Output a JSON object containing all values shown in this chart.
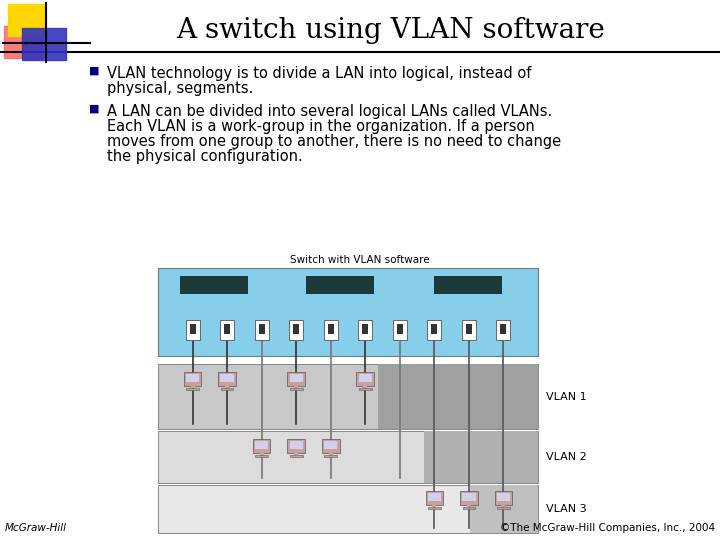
{
  "title": "A switch using VLAN software",
  "title_fontsize": 20,
  "title_font": "serif",
  "bg_color": "#ffffff",
  "title_color": "#000000",
  "bullet1_line1": "VLAN technology is to divide a LAN into logical, instead of",
  "bullet1_line2": "physical, segments.",
  "bullet2_line1": "A LAN can be divided into several logical LANs called VLANs.",
  "bullet2_line2": "Each VLAN is a work-group in the organization. If a person",
  "bullet2_line3": "moves from one group to another, there is no need to change",
  "bullet2_line4": "the physical configuration.",
  "bullet_color": "#000080",
  "bullet_fontsize": 10.5,
  "diagram_label": "Switch with VLAN software",
  "switch_color": "#87CEEB",
  "switch_dark_rect_color": "#1C3A3A",
  "vlan_labels": [
    "VLAN 1",
    "VLAN 2",
    "VLAN 3"
  ],
  "footer_left": "McGraw-Hill",
  "footer_right": "©The McGraw-Hill Companies, Inc., 2004",
  "footer_fontsize": 7.5,
  "logo_yellow": "#FFD700",
  "logo_red": "#FF6666",
  "logo_blue": "#3333BB",
  "vlan1_ports": [
    0,
    1,
    3,
    5
  ],
  "vlan2_ports": [
    2,
    4,
    6
  ],
  "vlan3_ports": [
    7,
    8,
    9
  ],
  "wire_color_dark": "#333333",
  "wire_color_mid": "#777777",
  "wire_color_light": "#555555"
}
